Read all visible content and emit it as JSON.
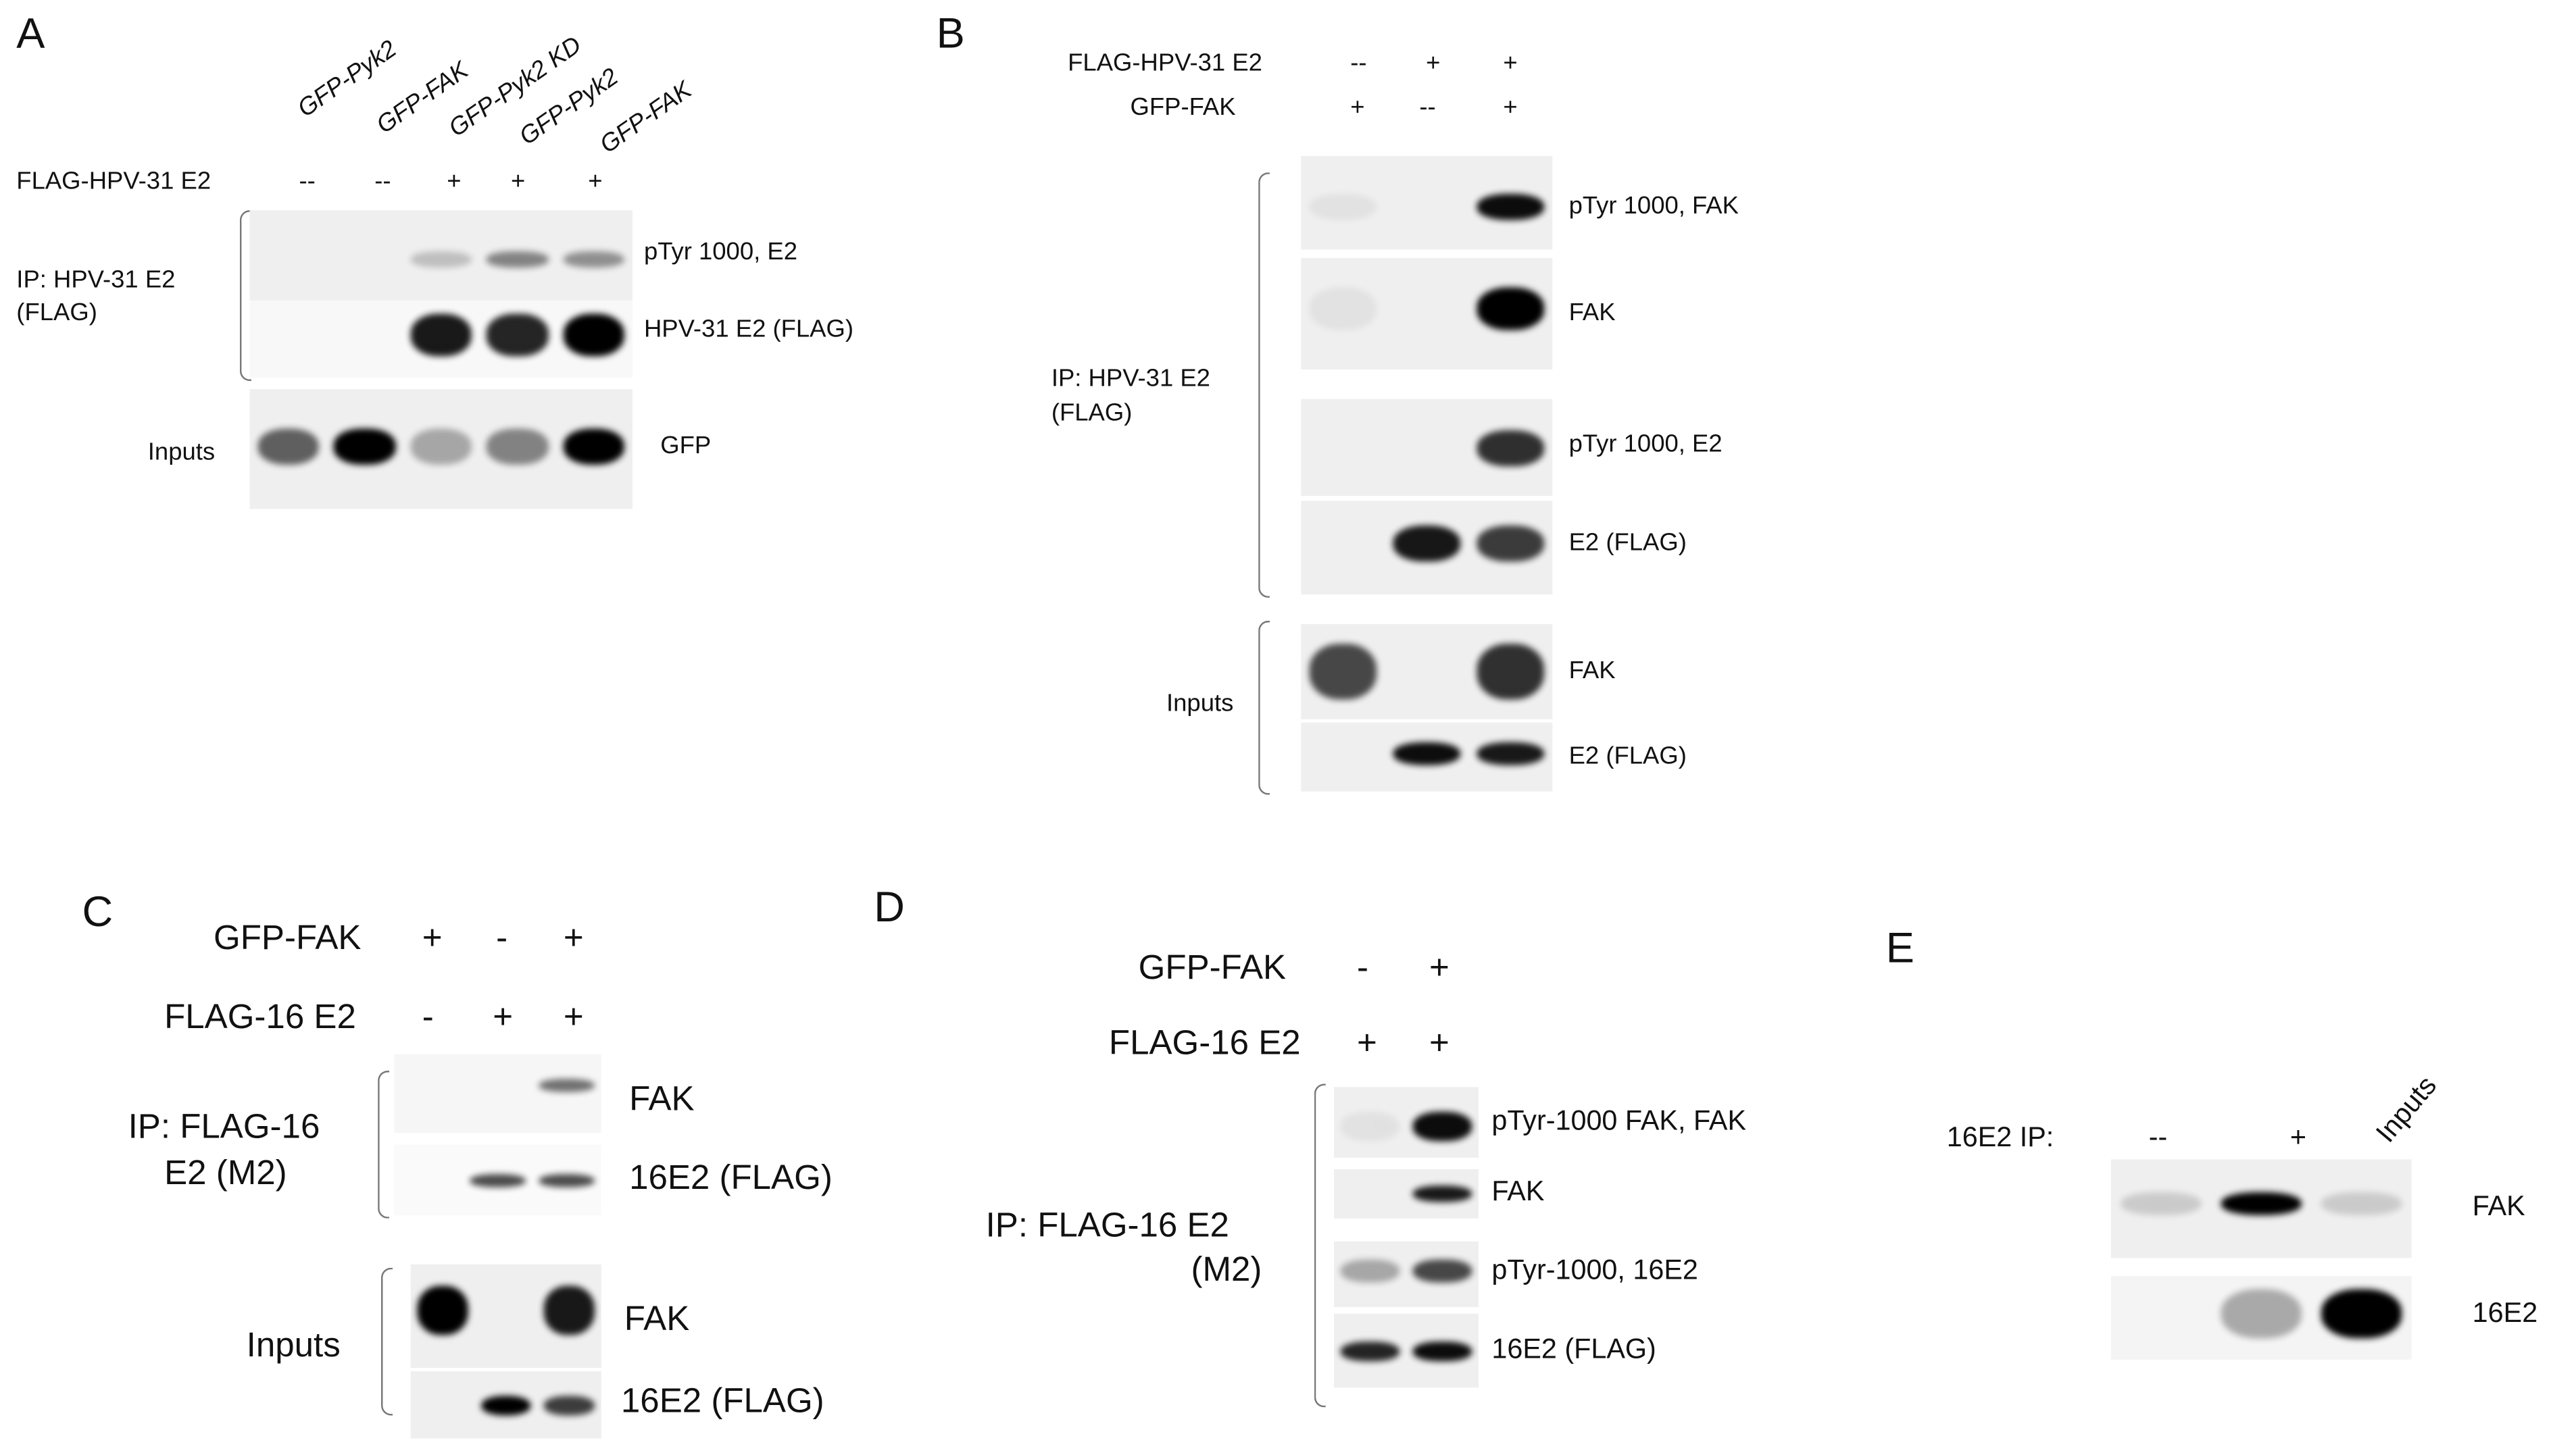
{
  "panelA": {
    "label": "A",
    "lanes": [
      "GFP-Pyk2",
      "GFP-FAK",
      "GFP-Pyk2 KD",
      "GFP-Pyk2",
      "GFP-FAK"
    ],
    "row_label": "FLAG-HPV-31 E2",
    "signs": [
      "--",
      "--",
      "+",
      "+",
      "+"
    ],
    "ip_label": "IP: HPV-31 E2",
    "ip_label2": "(FLAG)",
    "inputs_label": "Inputs",
    "blots": [
      {
        "label": "pTyr 1000, E2",
        "bands": [
          0,
          0,
          0.2,
          0.45,
          0.4
        ]
      },
      {
        "label": "HPV-31 E2 (FLAG)",
        "bands": [
          0,
          0,
          0.9,
          0.85,
          1
        ]
      },
      {
        "label": "GFP",
        "bands": [
          0.6,
          1,
          0.3,
          0.45,
          1
        ]
      }
    ]
  },
  "panelB": {
    "label": "B",
    "row1_label": "FLAG-HPV-31 E2",
    "row1_signs": [
      "--",
      "+",
      "+"
    ],
    "row2_label": "GFP-FAK",
    "row2_signs": [
      "+",
      "--",
      "+"
    ],
    "ip_label": "IP: HPV-31 E2",
    "ip_label2": "(FLAG)",
    "inputs_label": "Inputs",
    "blots": [
      {
        "label": "pTyr 1000, FAK",
        "bands": [
          0.05,
          0,
          0.95
        ]
      },
      {
        "label": "FAK",
        "bands": [
          0.05,
          0,
          1
        ]
      },
      {
        "label": "pTyr 1000, E2",
        "bands": [
          0,
          0,
          0.8
        ]
      },
      {
        "label": "E2 (FLAG)",
        "bands": [
          0,
          0.9,
          0.75
        ]
      },
      {
        "label": "FAK",
        "bands": [
          0.7,
          0,
          0.8
        ]
      },
      {
        "label": "E2 (FLAG)",
        "bands": [
          0,
          0.95,
          0.9
        ]
      }
    ]
  },
  "panelC": {
    "label": "C",
    "row1_label": "GFP-FAK",
    "row1_signs": [
      "+",
      "-",
      "+"
    ],
    "row2_label": "FLAG-16 E2",
    "row2_signs": [
      "-",
      "+",
      "+"
    ],
    "ip_label": "IP: FLAG-16",
    "ip_label2": "E2 (M2)",
    "inputs_label": "Inputs",
    "blots": [
      {
        "label": "FAK",
        "bands": [
          0,
          0,
          0.55
        ]
      },
      {
        "label": "16E2 (FLAG)",
        "bands": [
          0,
          0.7,
          0.7
        ]
      },
      {
        "label": "FAK",
        "bands": [
          1,
          0,
          0.9
        ]
      },
      {
        "label": "16E2 (FLAG)",
        "bands": [
          0,
          1,
          0.75
        ]
      }
    ]
  },
  "panelD": {
    "label": "D",
    "row1_label": "GFP-FAK",
    "row1_signs": [
      "-",
      "+"
    ],
    "row2_label": "FLAG-16 E2",
    "row2_signs": [
      "+",
      "+"
    ],
    "ip_label": "IP: FLAG-16 E2",
    "ip_label2": "(M2)",
    "blots": [
      {
        "label": "pTyr-1000 FAK, FAK",
        "bands": [
          0.05,
          0.95
        ]
      },
      {
        "label": "FAK",
        "bands": [
          0,
          0.9
        ]
      },
      {
        "label": "pTyr-1000, 16E2",
        "bands": [
          0.3,
          0.7
        ]
      },
      {
        "label": "16E2 (FLAG)",
        "bands": [
          0.85,
          0.95
        ]
      }
    ]
  },
  "panelE": {
    "label": "E",
    "row_label": "16E2 IP:",
    "signs": [
      "--",
      "+"
    ],
    "inputs_label": "Inputs",
    "blots": [
      {
        "label": "FAK",
        "bands": [
          0.15,
          1,
          0.15
        ]
      },
      {
        "label": "16E2",
        "bands": [
          0,
          0.3,
          1
        ]
      }
    ]
  }
}
